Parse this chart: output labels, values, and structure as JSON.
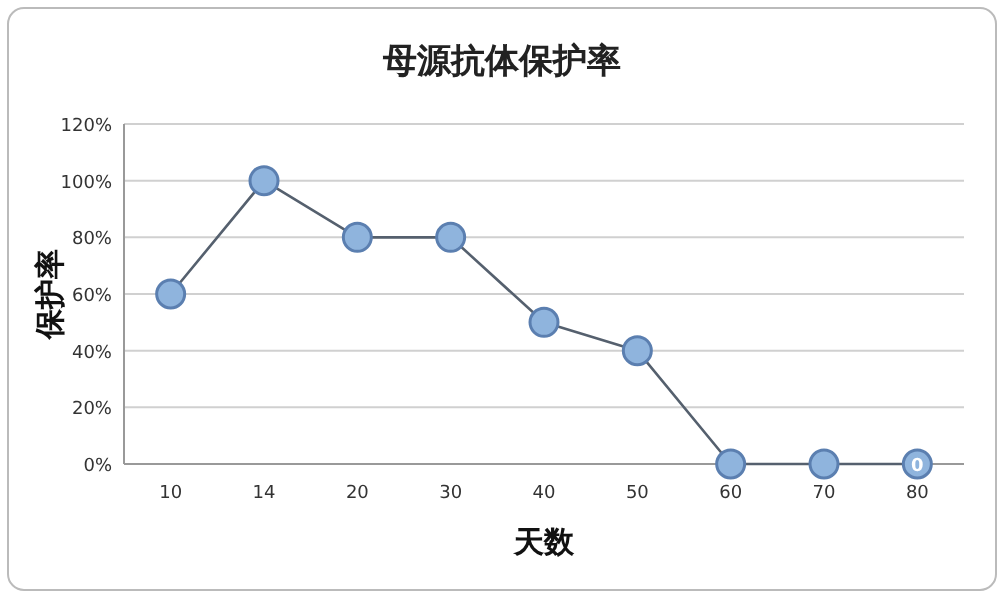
{
  "chart_data": {
    "type": "line",
    "title": "母源抗体保护率",
    "xlabel": "天数",
    "ylabel": "保护率",
    "categories": [
      "10",
      "14",
      "20",
      "30",
      "40",
      "50",
      "60",
      "70",
      "80"
    ],
    "series": [
      {
        "color": "#5b7fb0",
        "values": [
          60,
          100,
          80,
          80,
          50,
          40,
          0,
          0,
          0
        ],
        "value_labels": [
          null,
          null,
          null,
          null,
          null,
          null,
          null,
          null,
          "0"
        ]
      }
    ],
    "ylim": [
      0,
      120
    ],
    "yticks": [
      {
        "value": 0,
        "label": "0%"
      },
      {
        "value": 20,
        "label": "20%"
      },
      {
        "value": 40,
        "label": "40%"
      },
      {
        "value": 60,
        "label": "60%"
      },
      {
        "value": 80,
        "label": "80%"
      },
      {
        "value": 100,
        "label": "100%"
      },
      {
        "value": 120,
        "label": "120%"
      }
    ],
    "grid": "y",
    "marker": "circle",
    "line_style": "solid"
  }
}
